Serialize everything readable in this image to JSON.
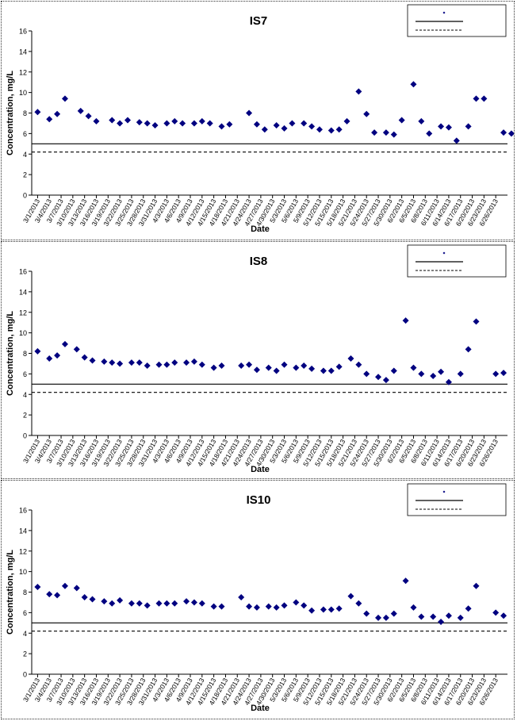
{
  "chart_data": [
    {
      "type": "scatter",
      "title": "IS7",
      "xlabel": "Date",
      "ylabel": "Concentration, mg/L",
      "ylim": [
        0,
        16
      ],
      "yticks": [
        0,
        2,
        4,
        6,
        8,
        10,
        12,
        14,
        16
      ],
      "x_tick_labels": [
        "3/1/2013",
        "3/4/2013",
        "3/7/2013",
        "3/10/2013",
        "3/13/2013",
        "3/16/2013",
        "3/19/2013",
        "3/22/2013",
        "3/25/2013",
        "3/28/2013",
        "3/31/2013",
        "4/3/2013",
        "4/6/2013",
        "4/9/2013",
        "4/12/2013",
        "4/15/2013",
        "4/18/2013",
        "4/21/2013",
        "4/24/2013",
        "4/27/2013",
        "4/30/2013",
        "5/3/2013",
        "5/6/2013",
        "5/9/2013",
        "5/12/2013",
        "5/15/2013",
        "5/18/2013",
        "5/21/2013",
        "5/24/2013",
        "5/27/2013",
        "5/30/2013",
        "6/2/2013",
        "6/5/2013",
        "6/8/2013",
        "6/11/2013",
        "6/14/2013",
        "6/17/2013",
        "6/20/2013",
        "6/23/2013",
        "6/26/2013"
      ],
      "legend_position": "top-right",
      "series": [
        {
          "marker": "diamond",
          "color": "#000080",
          "x": [
            "3/1/2013",
            "3/4/2013",
            "3/6/2013",
            "3/8/2013",
            "3/12/2013",
            "3/14/2013",
            "3/16/2013",
            "3/20/2013",
            "3/22/2013",
            "3/24/2013",
            "3/27/2013",
            "3/29/2013",
            "3/31/2013",
            "4/3/2013",
            "4/5/2013",
            "4/7/2013",
            "4/10/2013",
            "4/12/2013",
            "4/14/2013",
            "4/17/2013",
            "4/19/2013",
            "4/24/2013",
            "4/26/2013",
            "4/28/2013",
            "5/1/2013",
            "5/3/2013",
            "5/5/2013",
            "5/8/2013",
            "5/10/2013",
            "5/12/2013",
            "5/15/2013",
            "5/17/2013",
            "5/19/2013",
            "5/22/2013",
            "5/24/2013",
            "5/26/2013",
            "5/29/2013",
            "5/31/2013",
            "6/2/2013",
            "6/5/2013",
            "6/7/2013",
            "6/9/2013",
            "6/12/2013",
            "6/14/2013",
            "6/16/2013",
            "6/19/2013",
            "6/21/2013",
            "6/23/2013",
            "6/28/2013",
            "6/30/2013"
          ],
          "values": [
            8.1,
            7.4,
            7.9,
            9.4,
            8.2,
            7.7,
            7.2,
            7.3,
            7.0,
            7.3,
            7.1,
            7.0,
            6.8,
            7.0,
            7.2,
            7.0,
            7.0,
            7.2,
            7.0,
            6.7,
            6.9,
            8.0,
            6.9,
            6.4,
            6.8,
            6.5,
            7.0,
            7.0,
            6.7,
            6.4,
            6.3,
            6.4,
            7.2,
            10.1,
            7.9,
            6.1,
            6.1,
            5.9,
            7.3,
            10.8,
            7.2,
            6.0,
            6.7,
            6.6,
            5.3,
            6.7,
            9.4,
            9.4,
            6.1,
            6.0
          ]
        },
        {
          "type": "line",
          "style": "solid",
          "color": "#000000",
          "values": [
            5.0
          ]
        },
        {
          "type": "line",
          "style": "dashed",
          "color": "#000000",
          "values": [
            4.2
          ]
        }
      ]
    },
    {
      "type": "scatter",
      "title": "IS8",
      "xlabel": "Date",
      "ylabel": "Concentration, mg/L",
      "ylim": [
        0,
        16
      ],
      "yticks": [
        0,
        2,
        4,
        6,
        8,
        10,
        12,
        14,
        16
      ],
      "x_tick_labels": [
        "3/1/2013",
        "3/4/2013",
        "3/7/2013",
        "3/10/2013",
        "3/13/2013",
        "3/16/2013",
        "3/19/2013",
        "3/22/2013",
        "3/25/2013",
        "3/28/2013",
        "3/31/2013",
        "4/3/2013",
        "4/6/2013",
        "4/9/2013",
        "4/12/2013",
        "4/15/2013",
        "4/18/2013",
        "4/21/2013",
        "4/24/2013",
        "4/27/2013",
        "4/30/2013",
        "5/3/2013",
        "5/6/2013",
        "5/9/2013",
        "5/12/2013",
        "5/15/2013",
        "5/18/2013",
        "5/21/2013",
        "5/24/2013",
        "5/27/2013",
        "5/30/2013",
        "6/2/2013",
        "6/5/2013",
        "6/8/2013",
        "6/11/2013",
        "6/14/2013",
        "6/17/2013",
        "6/20/2013",
        "6/23/2013",
        "6/26/2013"
      ],
      "legend_position": "top-right",
      "series": [
        {
          "marker": "diamond",
          "color": "#000080",
          "x": [
            "3/1/2013",
            "3/4/2013",
            "3/6/2013",
            "3/8/2013",
            "3/11/2013",
            "3/13/2013",
            "3/15/2013",
            "3/18/2013",
            "3/20/2013",
            "3/22/2013",
            "3/25/2013",
            "3/27/2013",
            "3/29/2013",
            "4/1/2013",
            "4/3/2013",
            "4/5/2013",
            "4/8/2013",
            "4/10/2013",
            "4/12/2013",
            "4/15/2013",
            "4/17/2013",
            "4/22/2013",
            "4/24/2013",
            "4/26/2013",
            "4/29/2013",
            "5/1/2013",
            "5/3/2013",
            "5/6/2013",
            "5/8/2013",
            "5/10/2013",
            "5/13/2013",
            "5/15/2013",
            "5/17/2013",
            "5/20/2013",
            "5/22/2013",
            "5/24/2013",
            "5/27/2013",
            "5/29/2013",
            "5/31/2013",
            "6/3/2013",
            "6/5/2013",
            "6/7/2013",
            "6/10/2013",
            "6/12/2013",
            "6/14/2013",
            "6/17/2013",
            "6/19/2013",
            "6/21/2013",
            "6/26/2013",
            "6/28/2013"
          ],
          "values": [
            8.2,
            7.5,
            7.8,
            8.9,
            8.4,
            7.6,
            7.3,
            7.2,
            7.1,
            7.0,
            7.1,
            7.1,
            6.8,
            6.9,
            6.9,
            7.1,
            7.1,
            7.2,
            6.9,
            6.6,
            6.8,
            6.8,
            6.9,
            6.4,
            6.6,
            6.3,
            6.9,
            6.6,
            6.8,
            6.5,
            6.3,
            6.3,
            6.7,
            7.5,
            6.9,
            6.0,
            5.7,
            5.4,
            6.3,
            11.2,
            6.6,
            6.0,
            5.8,
            6.2,
            5.2,
            6.0,
            8.4,
            11.1,
            6.0,
            6.1
          ]
        },
        {
          "type": "line",
          "style": "solid",
          "color": "#000000",
          "values": [
            5.0
          ]
        },
        {
          "type": "line",
          "style": "dashed",
          "color": "#000000",
          "values": [
            4.2
          ]
        }
      ]
    },
    {
      "type": "scatter",
      "title": "IS10",
      "xlabel": "Date",
      "ylabel": "Concentration, mg/L",
      "ylim": [
        0,
        16
      ],
      "yticks": [
        0,
        2,
        4,
        6,
        8,
        10,
        12,
        14,
        16
      ],
      "x_tick_labels": [
        "3/1/2013",
        "3/4/2013",
        "3/7/2013",
        "3/10/2013",
        "3/13/2013",
        "3/16/2013",
        "3/19/2013",
        "3/22/2013",
        "3/25/2013",
        "3/28/2013",
        "3/31/2013",
        "4/3/2013",
        "4/6/2013",
        "4/9/2013",
        "4/12/2013",
        "4/15/2013",
        "4/18/2013",
        "4/21/2013",
        "4/24/2013",
        "4/27/2013",
        "4/30/2013",
        "5/3/2013",
        "5/6/2013",
        "5/9/2013",
        "5/12/2013",
        "5/15/2013",
        "5/18/2013",
        "5/21/2013",
        "5/24/2013",
        "5/27/2013",
        "5/30/2013",
        "6/2/2013",
        "6/5/2013",
        "6/8/2013",
        "6/11/2013",
        "6/14/2013",
        "6/17/2013",
        "6/20/2013",
        "6/23/2013",
        "6/26/2013"
      ],
      "legend_position": "top-right",
      "series": [
        {
          "marker": "diamond",
          "color": "#000080",
          "x": [
            "3/1/2013",
            "3/4/2013",
            "3/6/2013",
            "3/8/2013",
            "3/11/2013",
            "3/13/2013",
            "3/15/2013",
            "3/18/2013",
            "3/20/2013",
            "3/22/2013",
            "3/25/2013",
            "3/27/2013",
            "3/29/2013",
            "4/1/2013",
            "4/3/2013",
            "4/5/2013",
            "4/8/2013",
            "4/10/2013",
            "4/12/2013",
            "4/15/2013",
            "4/17/2013",
            "4/22/2013",
            "4/24/2013",
            "4/26/2013",
            "4/29/2013",
            "5/1/2013",
            "5/3/2013",
            "5/6/2013",
            "5/8/2013",
            "5/10/2013",
            "5/13/2013",
            "5/15/2013",
            "5/17/2013",
            "5/20/2013",
            "5/22/2013",
            "5/24/2013",
            "5/27/2013",
            "5/29/2013",
            "5/31/2013",
            "6/3/2013",
            "6/5/2013",
            "6/7/2013",
            "6/10/2013",
            "6/12/2013",
            "6/14/2013",
            "6/17/2013",
            "6/19/2013",
            "6/21/2013",
            "6/26/2013",
            "6/28/2013"
          ],
          "values": [
            8.5,
            7.8,
            7.7,
            8.6,
            8.4,
            7.5,
            7.3,
            7.1,
            6.9,
            7.2,
            6.9,
            6.9,
            6.7,
            6.9,
            6.9,
            6.9,
            7.1,
            7.0,
            6.9,
            6.6,
            6.6,
            7.5,
            6.6,
            6.5,
            6.6,
            6.5,
            6.7,
            7.0,
            6.7,
            6.2,
            6.3,
            6.3,
            6.4,
            7.6,
            6.9,
            5.9,
            5.5,
            5.5,
            5.9,
            9.1,
            6.5,
            5.6,
            5.6,
            5.1,
            5.7,
            5.5,
            6.4,
            8.6,
            6.0,
            5.7
          ]
        },
        {
          "type": "line",
          "style": "solid",
          "color": "#000000",
          "values": [
            5.0
          ]
        },
        {
          "type": "line",
          "style": "dashed",
          "color": "#000000",
          "values": [
            4.2
          ]
        }
      ]
    }
  ]
}
